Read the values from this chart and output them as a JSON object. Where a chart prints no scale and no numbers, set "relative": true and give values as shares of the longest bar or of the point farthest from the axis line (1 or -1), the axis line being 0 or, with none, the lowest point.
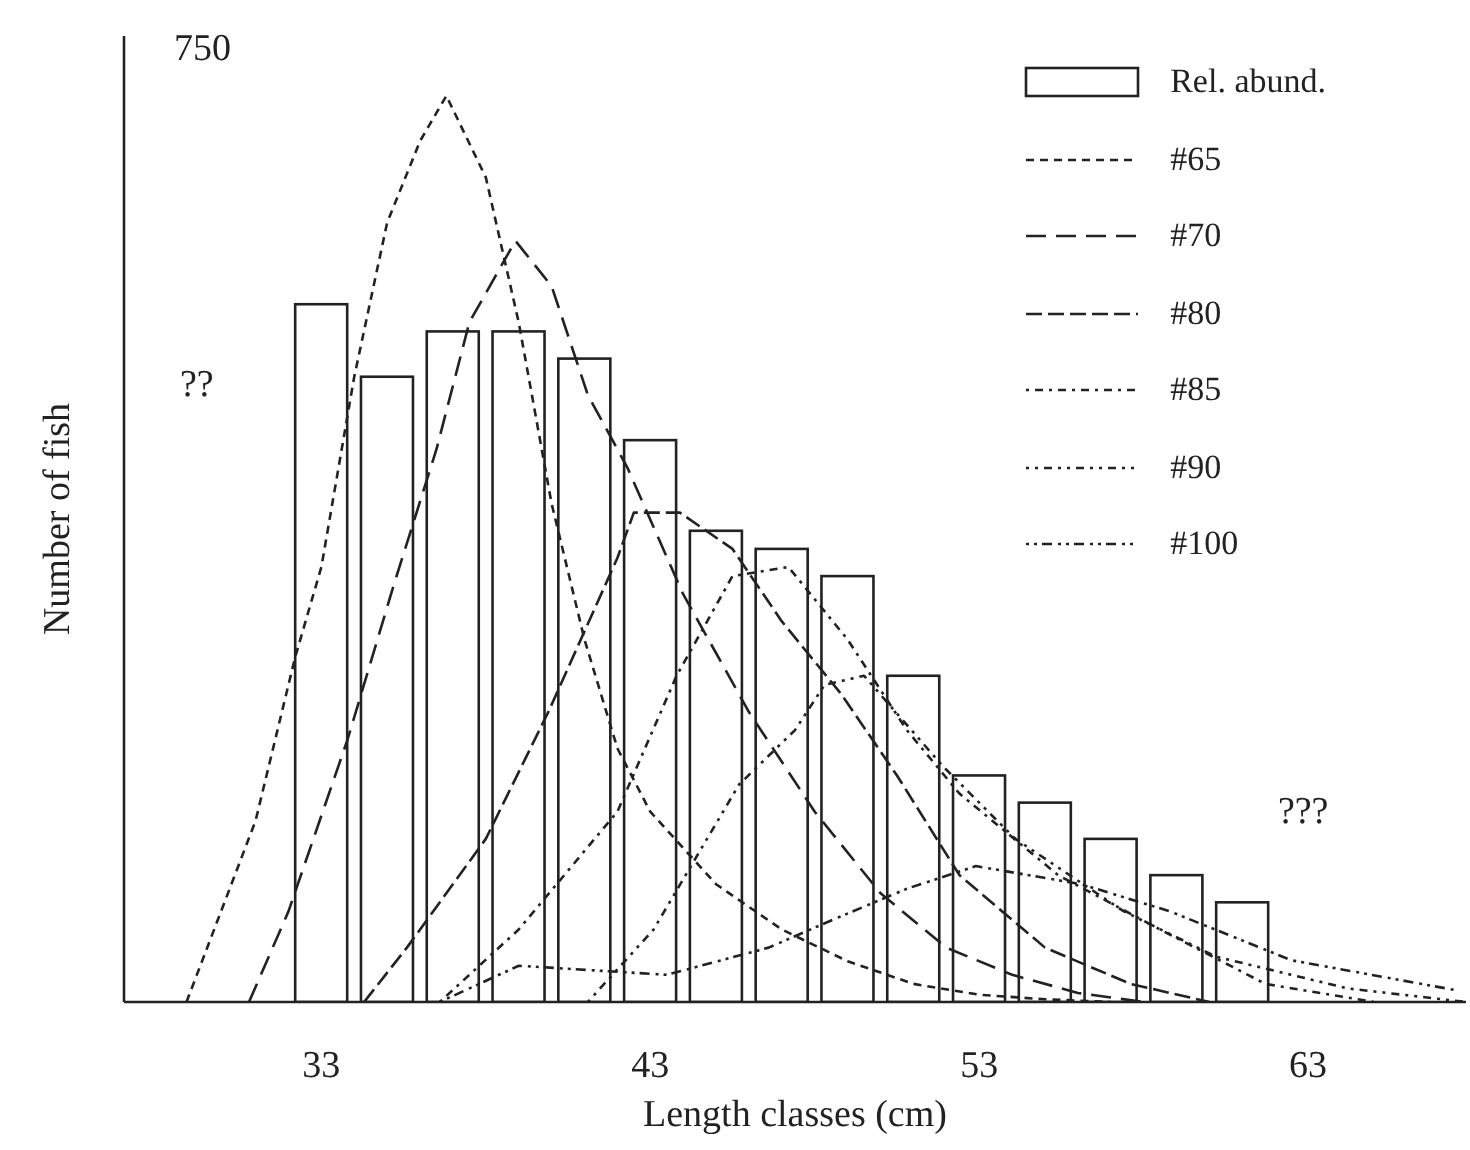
{
  "chart_data": {
    "type": "bar",
    "relative": true,
    "xlabel": "Length classes (cm)",
    "ylabel": "Number of fish",
    "x": [
      33,
      35,
      37,
      39,
      41,
      43,
      45,
      47,
      49,
      51,
      53,
      55,
      57,
      59,
      61
    ],
    "xlim": [
      27,
      67.8
    ],
    "xticks": [
      33,
      43,
      53,
      63
    ],
    "legend": "top right",
    "grid": false,
    "marker": "none",
    "annotations": [
      "750",
      "??",
      "???"
    ],
    "series": [
      {
        "name": "Rel. abund.",
        "color": "#ffffff",
        "values": [
          0.77,
          0.69,
          0.74,
          0.74,
          0.71,
          0.62,
          0.52,
          0.5,
          0.47,
          0.36,
          0.25,
          0.22,
          0.18,
          0.14,
          0.11
        ]
      },
      {
        "name": "#65",
        "type": "line",
        "line_style": "dashed",
        "color": "#222222",
        "x": [
          28.9,
          31,
          32.2,
          33,
          34,
          35,
          36,
          36.8,
          38,
          39,
          40,
          41,
          42,
          43,
          45,
          47,
          49,
          51,
          53,
          55,
          57
        ],
        "values": [
          0,
          0.2,
          0.38,
          0.48,
          0.69,
          0.86,
          0.95,
          1,
          0.91,
          0.75,
          0.55,
          0.4,
          0.28,
          0.21,
          0.13,
          0.08,
          0.045,
          0.02,
          0.008,
          0.003,
          0
        ]
      },
      {
        "name": "#70",
        "type": "line",
        "line_style": "dashed",
        "color": "#222222",
        "x": [
          30.8,
          32,
          33.8,
          35.2,
          36.5,
          37.5,
          38.9,
          40,
          41.1,
          42.3,
          44,
          46,
          48,
          50,
          52,
          54,
          56,
          58
        ],
        "values": [
          0,
          0.1,
          0.29,
          0.46,
          0.61,
          0.75,
          0.84,
          0.79,
          0.67,
          0.59,
          0.45,
          0.32,
          0.21,
          0.12,
          0.06,
          0.03,
          0.01,
          0
        ]
      },
      {
        "name": "#80",
        "type": "line",
        "line_style": "dashed",
        "color": "#222222",
        "x": [
          34.3,
          35.6,
          38,
          39.9,
          42,
          42.5,
          43.9,
          45.5,
          47,
          48.8,
          50.5,
          52.4,
          55,
          57.6,
          60
        ],
        "values": [
          0,
          0.06,
          0.18,
          0.32,
          0.49,
          0.54,
          0.54,
          0.5,
          0.42,
          0.34,
          0.25,
          0.14,
          0.06,
          0.02,
          0
        ]
      },
      {
        "name": "#85",
        "type": "line",
        "line_style": "dotted",
        "color": "#222222",
        "x": [
          36.6,
          39,
          42,
          43.8,
          45.5,
          47.2,
          49,
          50.8,
          52.4,
          55.4,
          58.5,
          61.7,
          65
        ],
        "values": [
          0,
          0.08,
          0.21,
          0.36,
          0.47,
          0.48,
          0.4,
          0.3,
          0.23,
          0.14,
          0.08,
          0.02,
          0
        ]
      },
      {
        "name": "#90",
        "type": "line",
        "line_style": "dotted",
        "color": "#222222",
        "x": [
          41.1,
          43.1,
          45.7,
          47.4,
          48.3,
          49.5,
          51.9,
          54.1,
          57.4,
          60.2,
          64.2,
          67.8
        ],
        "values": [
          0,
          0.08,
          0.24,
          0.3,
          0.35,
          0.36,
          0.26,
          0.18,
          0.1,
          0.05,
          0.015,
          0
        ]
      },
      {
        "name": "#100",
        "type": "line",
        "line_style": "dotted",
        "color": "#222222",
        "x": [
          36.6,
          39,
          43.5,
          46.6,
          48.5,
          50.8,
          52.9,
          56.1,
          58.8,
          62.5,
          67.5
        ],
        "values": [
          0,
          0.04,
          0.03,
          0.06,
          0.09,
          0.125,
          0.15,
          0.13,
          0.1,
          0.046,
          0.013
        ]
      }
    ]
  }
}
